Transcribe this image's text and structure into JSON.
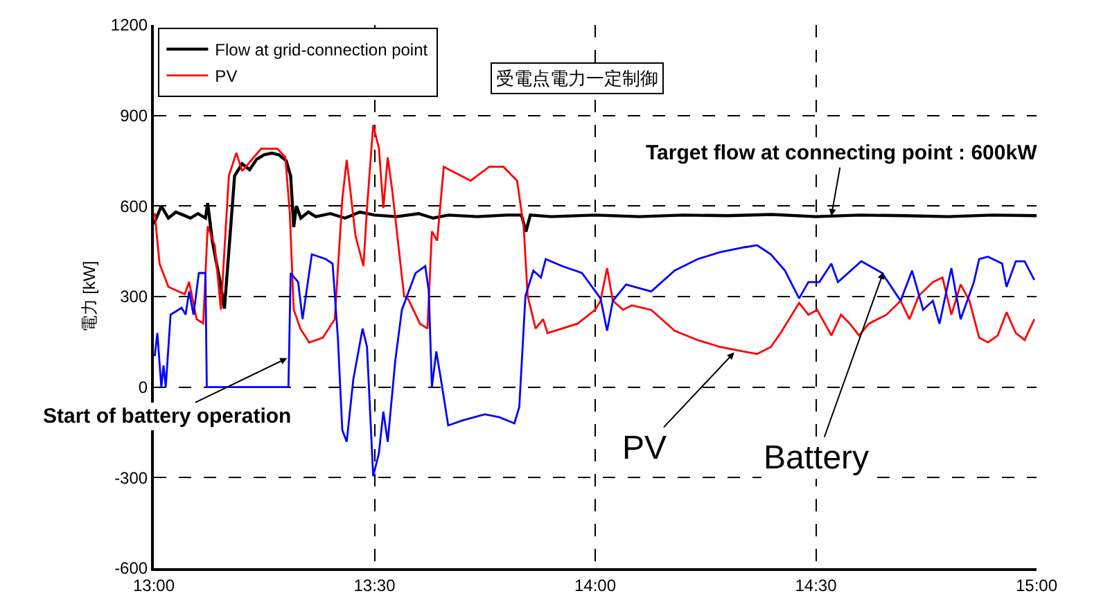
{
  "chart_data": {
    "type": "line",
    "ylabel": "電力 [kW]",
    "xlim": [
      13,
      15
    ],
    "xticks": [
      {
        "value": 13,
        "label": "13:00"
      },
      {
        "value": 13.5,
        "label": "13:30"
      },
      {
        "value": 14,
        "label": "14:00"
      },
      {
        "value": 14.5,
        "label": "14:30"
      },
      {
        "value": 15,
        "label": "15:00"
      }
    ],
    "ylim": [
      -600,
      1200
    ],
    "yticks": [
      -600,
      -300,
      0,
      300,
      600,
      900,
      1200
    ],
    "grid": true,
    "legend": "top left",
    "line_style": "solid",
    "marker": "none",
    "series": [
      {
        "name": "Flow at grid-connection point",
        "color": "#000000",
        "x": [
          13,
          13.017,
          13.033,
          13.05,
          13.067,
          13.083,
          13.1,
          13.117,
          13.122,
          13.133,
          13.15,
          13.16,
          13.17,
          13.183,
          13.2,
          13.217,
          13.233,
          13.25,
          13.267,
          13.283,
          13.3,
          13.31,
          13.317,
          13.323,
          13.333,
          13.35,
          13.367,
          13.4,
          13.433,
          13.467,
          13.5,
          13.55,
          13.6,
          13.633,
          13.667,
          13.733,
          13.8,
          13.833,
          13.843,
          13.853,
          13.9,
          14,
          14.1,
          14.2,
          14.3,
          14.4,
          14.5,
          14.6,
          14.7,
          14.8,
          14.9,
          15
        ],
        "values": [
          540,
          600,
          560,
          580,
          570,
          560,
          575,
          560,
          610,
          480,
          350,
          260,
          450,
          700,
          740,
          720,
          755,
          770,
          775,
          770,
          750,
          700,
          530,
          600,
          560,
          580,
          565,
          575,
          560,
          580,
          570,
          565,
          575,
          560,
          570,
          565,
          570,
          570,
          515,
          570,
          565,
          570,
          565,
          570,
          568,
          572,
          565,
          570,
          568,
          565,
          570,
          568
        ]
      },
      {
        "name": "PV",
        "color": "#ff0000",
        "x": [
          13.002,
          13.013,
          13.033,
          13.07,
          13.08,
          13.097,
          13.112,
          13.122,
          13.138,
          13.152,
          13.17,
          13.187,
          13.2,
          13.227,
          13.243,
          13.28,
          13.298,
          13.308,
          13.317,
          13.332,
          13.352,
          13.383,
          13.41,
          13.427,
          13.437,
          13.445,
          13.457,
          13.475,
          13.483,
          13.497,
          13.51,
          13.52,
          13.53,
          13.54,
          13.567,
          13.577,
          13.603,
          13.62,
          13.63,
          13.642,
          13.657,
          13.675,
          13.718,
          13.76,
          13.792,
          13.823,
          13.838,
          13.847,
          13.865,
          13.882,
          13.892,
          13.96,
          14,
          14.012,
          14.027,
          14.04,
          14.063,
          14.083,
          14.127,
          14.18,
          14.232,
          14.283,
          14.337,
          14.367,
          14.398,
          14.42,
          14.462,
          14.483,
          14.503,
          14.535,
          14.557,
          14.577,
          14.598,
          14.62,
          14.66,
          14.692,
          14.712,
          14.733,
          14.765,
          14.787,
          14.807,
          14.828,
          14.848,
          14.87,
          14.89,
          14.912,
          14.932,
          14.953,
          14.973,
          14.995
        ],
        "values": [
          577,
          409,
          332,
          308,
          349,
          225,
          211,
          533,
          470,
          257,
          700,
          776,
          716,
          762,
          790,
          790,
          762,
          578,
          257,
          194,
          148,
          164,
          225,
          623,
          753,
          654,
          501,
          401,
          593,
          868,
          792,
          593,
          761,
          654,
          302,
          290,
          210,
          194,
          516,
          485,
          730,
          716,
          684,
          730,
          730,
          684,
          531,
          302,
          194,
          225,
          179,
          210,
          256,
          286,
          394,
          286,
          256,
          271,
          256,
          187,
          156,
          133,
          118,
          110,
          133,
          179,
          279,
          240,
          256,
          171,
          240,
          210,
          171,
          210,
          240,
          286,
          225,
          302,
          348,
          363,
          240,
          340,
          286,
          164,
          148,
          171,
          248,
          179,
          156,
          225
        ]
      },
      {
        "color": "#0000ff",
        "x": [
          13.002,
          13.008,
          13.017,
          13.022,
          13.027,
          13.038,
          13.063,
          13.072,
          13.08,
          13.09,
          13.102,
          13.117,
          13.12,
          13.305,
          13.31,
          13.327,
          13.337,
          13.358,
          13.39,
          13.405,
          13.417,
          13.427,
          13.437,
          13.452,
          13.473,
          13.483,
          13.497,
          13.51,
          13.52,
          13.53,
          13.547,
          13.562,
          13.593,
          13.615,
          13.623,
          13.63,
          13.64,
          13.65,
          13.667,
          13.7,
          13.75,
          13.783,
          13.817,
          13.828,
          13.842,
          13.86,
          13.877,
          13.888,
          13.925,
          13.97,
          14.012,
          14.027,
          14.04,
          14.07,
          14.127,
          14.18,
          14.232,
          14.283,
          14.337,
          14.367,
          14.398,
          14.43,
          14.462,
          14.483,
          14.508,
          14.535,
          14.55,
          14.603,
          14.65,
          14.692,
          14.718,
          14.743,
          14.765,
          14.78,
          14.807,
          14.828,
          14.858,
          14.87,
          14.89,
          14.922,
          14.932,
          14.953,
          14.973,
          14.995
        ],
        "values": [
          103,
          179,
          0,
          72,
          0,
          240,
          263,
          240,
          317,
          240,
          378,
          378,
          0,
          0,
          378,
          348,
          225,
          440,
          424,
          409,
          164,
          -142,
          -181,
          26,
          194,
          133,
          -295,
          -219,
          -81,
          -181,
          87,
          256,
          378,
          401,
          317,
          0,
          118,
          30,
          -127,
          -110,
          -90,
          -100,
          -120,
          -66,
          302,
          386,
          363,
          424,
          401,
          378,
          294,
          187,
          286,
          340,
          317,
          386,
          424,
          447,
          463,
          470,
          440,
          386,
          294,
          348,
          348,
          409,
          348,
          417,
          378,
          286,
          386,
          256,
          286,
          210,
          394,
          225,
          348,
          424,
          432,
          409,
          332,
          417,
          417,
          355
        ]
      }
    ],
    "annotations": [
      "受電点電力一定制御",
      {
        "text": "Target flow at connecting point : 600kW",
        "x": 14.535,
        "y": 567
      },
      {
        "text": "Start of battery operation",
        "x": 13.302,
        "y": 96
      },
      {
        "text": "PV",
        "x": 14.315,
        "y": 115
      },
      {
        "text": "Battery",
        "x": 14.653,
        "y": 381
      }
    ]
  }
}
